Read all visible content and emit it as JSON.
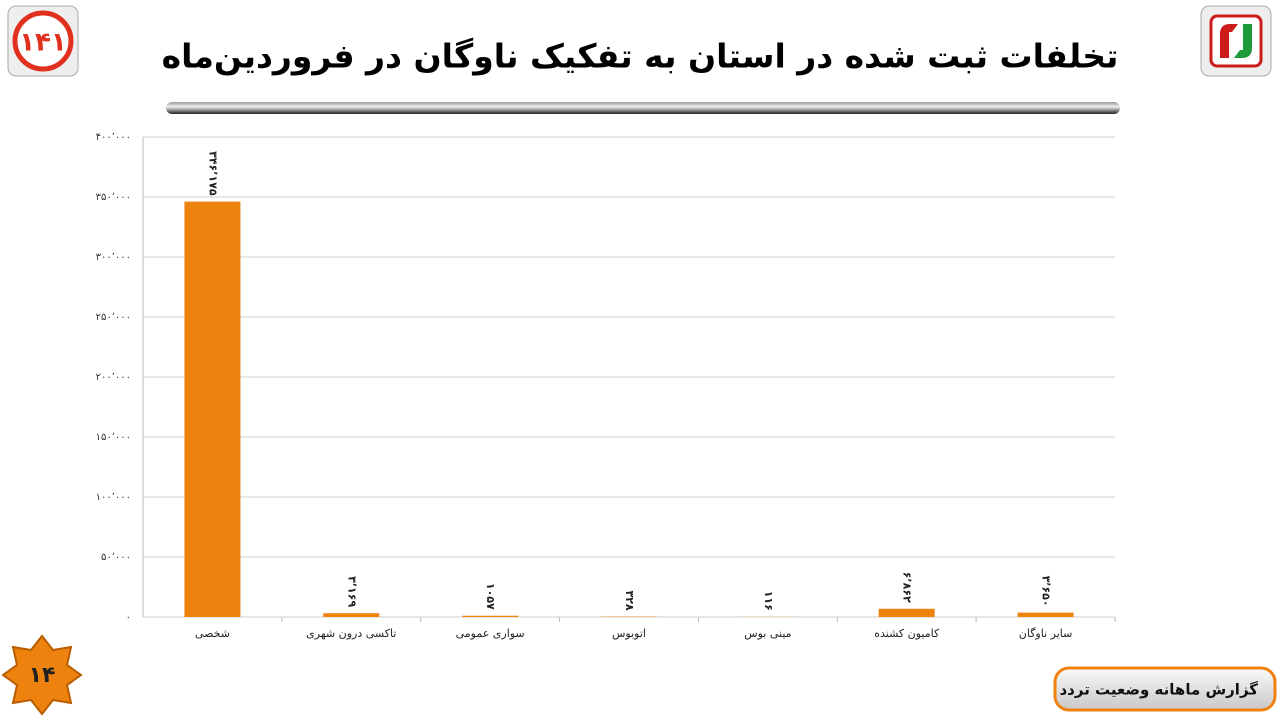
{
  "header": {
    "title": "تخلفات ثبت شده در استان به تفکیک ناوگان در فروردین‌ماه"
  },
  "logo_text": "۱۴۱",
  "chart_data": {
    "type": "bar",
    "categories": [
      "شخصی",
      "تاکسی درون شهری",
      "سواری عمومی",
      "اتوبوس",
      "مینی بوس",
      "کامیون کشنده",
      "سایر ناوگان"
    ],
    "values": [
      346175,
      3169,
      1057,
      328,
      116,
      6862,
      3650
    ],
    "value_labels": [
      "۳۴۶٬۱۷۵",
      "۳٬۱۶۹",
      "۱۰۵۷",
      "۳۲۸",
      "۱۱۶",
      "۶٬۸۶۲",
      "۳٬۶۵۰"
    ],
    "color": "#ee820f",
    "ylim": [
      0,
      400000
    ],
    "yticks": [
      {
        "value": 0,
        "label": "۰"
      },
      {
        "value": 50000,
        "label": "۵۰٬۰۰۰"
      },
      {
        "value": 100000,
        "label": "۱۰۰٬۰۰۰"
      },
      {
        "value": 150000,
        "label": "۱۵۰٬۰۰۰"
      },
      {
        "value": 200000,
        "label": "۲۰۰٬۰۰۰"
      },
      {
        "value": 250000,
        "label": "۲۵۰٬۰۰۰"
      },
      {
        "value": 300000,
        "label": "۳۰۰٬۰۰۰"
      },
      {
        "value": 350000,
        "label": "۳۵۰٬۰۰۰"
      },
      {
        "value": 400000,
        "label": "۴۰۰٬۰۰۰"
      }
    ],
    "grid": true
  },
  "page_number": "۱۴",
  "footer": {
    "label": "گزارش ماهانه وضعیت تردد"
  }
}
